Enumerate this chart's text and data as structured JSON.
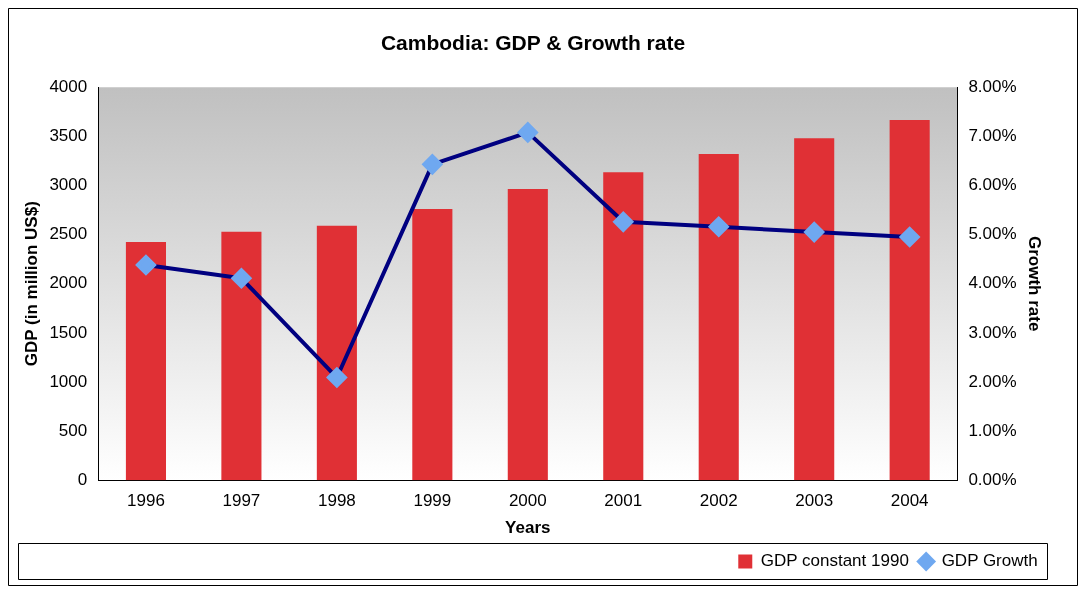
{
  "chart_data": {
    "type": "bar",
    "title": "Cambodia: GDP & Growth rate",
    "xlabel": "Years",
    "ylabel": "GDP (in million US$)",
    "y2label": "Growth rate",
    "categories": [
      "1996",
      "1997",
      "1998",
      "1999",
      "2000",
      "2001",
      "2002",
      "2003",
      "2004"
    ],
    "series": [
      {
        "name": "GDP constant 1990",
        "color": "#e03035",
        "values": [
          2425,
          2530,
          2590,
          2760,
          2965,
          3135,
          3320,
          3480,
          3665
        ]
      },
      {
        "name": "GDP Growth",
        "type": "line",
        "axis": "y2",
        "color": "#000080",
        "marker": "diamond",
        "values": [
          4.38,
          4.11,
          2.09,
          6.43,
          7.08,
          5.26,
          5.16,
          5.05,
          4.95
        ]
      }
    ],
    "ylim": [
      0,
      4000
    ],
    "yticks": [
      0,
      500,
      1000,
      1500,
      2000,
      2500,
      3000,
      3500,
      4000
    ],
    "y2lim": [
      0,
      8
    ],
    "y2ticks": [
      {
        "value": 0,
        "label": "0.00%"
      },
      {
        "value": 1,
        "label": "1.00%"
      },
      {
        "value": 2,
        "label": "2.00%"
      },
      {
        "value": 3,
        "label": "3.00%"
      },
      {
        "value": 4,
        "label": "4.00%"
      },
      {
        "value": 5,
        "label": "5.00%"
      },
      {
        "value": 6,
        "label": "6.00%"
      },
      {
        "value": 7,
        "label": "7.00%"
      },
      {
        "value": 8,
        "label": "8.00%"
      }
    ],
    "legend": "bottom right"
  }
}
